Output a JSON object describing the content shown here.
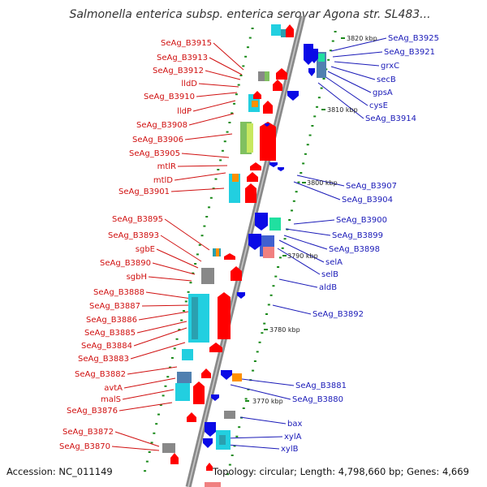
{
  "title": "Salmonella enterica subsp. enterica serovar Agona str. SL483...",
  "footer": {
    "accession": "Accession: NC_011149",
    "topology": "Topology: circular; Length: 4,798,660 bp; Genes: 4,669"
  },
  "colors": {
    "left_label": "#d01010",
    "right_label": "#1a1ab8",
    "backbone": "#8a8a8a",
    "orf_plus": "#ff0000",
    "orf_minus": "#0a0ae6",
    "tick_dash": "#1a8a1a",
    "cog_cyan": "#22cfe0",
    "cog_teal": "#2aa0b0",
    "cog_green": "#80c060",
    "cog_lime": "#c8e860",
    "cog_orange": "#ff9000",
    "cog_gray": "#888888",
    "cog_pink": "#f08080",
    "cog_blue": "#4060d0",
    "cog_steel": "#5080b0",
    "cog_mint": "#20e0a0"
  },
  "ticks": [
    "3820 kbp",
    "3810 kbp",
    "3800 kbp",
    "3790 kbp",
    "3780 kbp",
    "3770 kbp"
  ],
  "left_labels": [
    "SeAg_B3915",
    "SeAg_B3913",
    "SeAg_B3912",
    "lldD",
    "SeAg_B3910",
    "lldP",
    "SeAg_B3908",
    "SeAg_B3906",
    "SeAg_B3905",
    "mtlR",
    "mtlD",
    "SeAg_B3901",
    "SeAg_B3895",
    "SeAg_B3893",
    "sgbE",
    "SeAg_B3890",
    "sgbH",
    "SeAg_B3888",
    "SeAg_B3887",
    "SeAg_B3886",
    "SeAg_B3885",
    "SeAg_B3884",
    "SeAg_B3883",
    "SeAg_B3882",
    "avtA",
    "malS",
    "SeAg_B3876",
    "SeAg_B3872",
    "SeAg_B3870"
  ],
  "right_labels": [
    "SeAg_B3925",
    "SeAg_B3921",
    "grxC",
    "secB",
    "gpsA",
    "cysE",
    "SeAg_B3914",
    "SeAg_B3907",
    "SeAg_B3904",
    "SeAg_B3900",
    "SeAg_B3899",
    "SeAg_B3898",
    "selA",
    "selB",
    "aldB",
    "SeAg_B3892",
    "SeAg_B3881",
    "SeAg_B3880",
    "bax",
    "xylA",
    "xylB"
  ]
}
